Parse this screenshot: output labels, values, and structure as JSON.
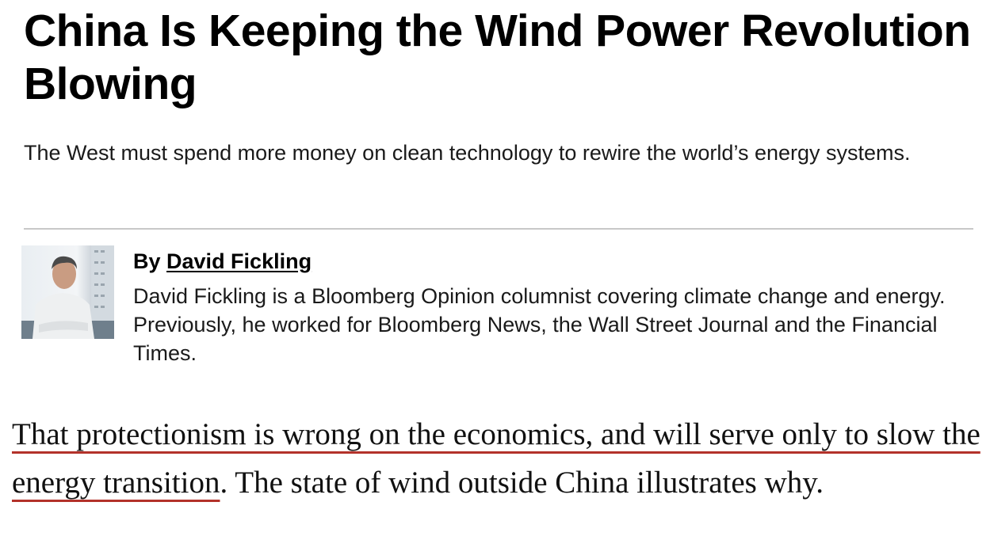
{
  "article": {
    "title": "China Is Keeping the Wind Power Revolution Blowing",
    "subtitle": "The West must spend more money on clean technology to rewire the world’s energy systems.",
    "author": {
      "by_label": "By",
      "name": "David Fickling",
      "bio": "David Fickling is a Bloomberg Opinion columnist covering climate change and energy. Previously, he worked for Bloomberg News, the Wall Street Journal and the Financial Times."
    },
    "body": {
      "highlighted": "That protectionism is wrong on the economics, and will serve only to slow the energy transition",
      "rest": ". The state of wind outside China illustrates why."
    },
    "colors": {
      "underline": "#b3322a",
      "divider": "#c8c8c8"
    }
  }
}
